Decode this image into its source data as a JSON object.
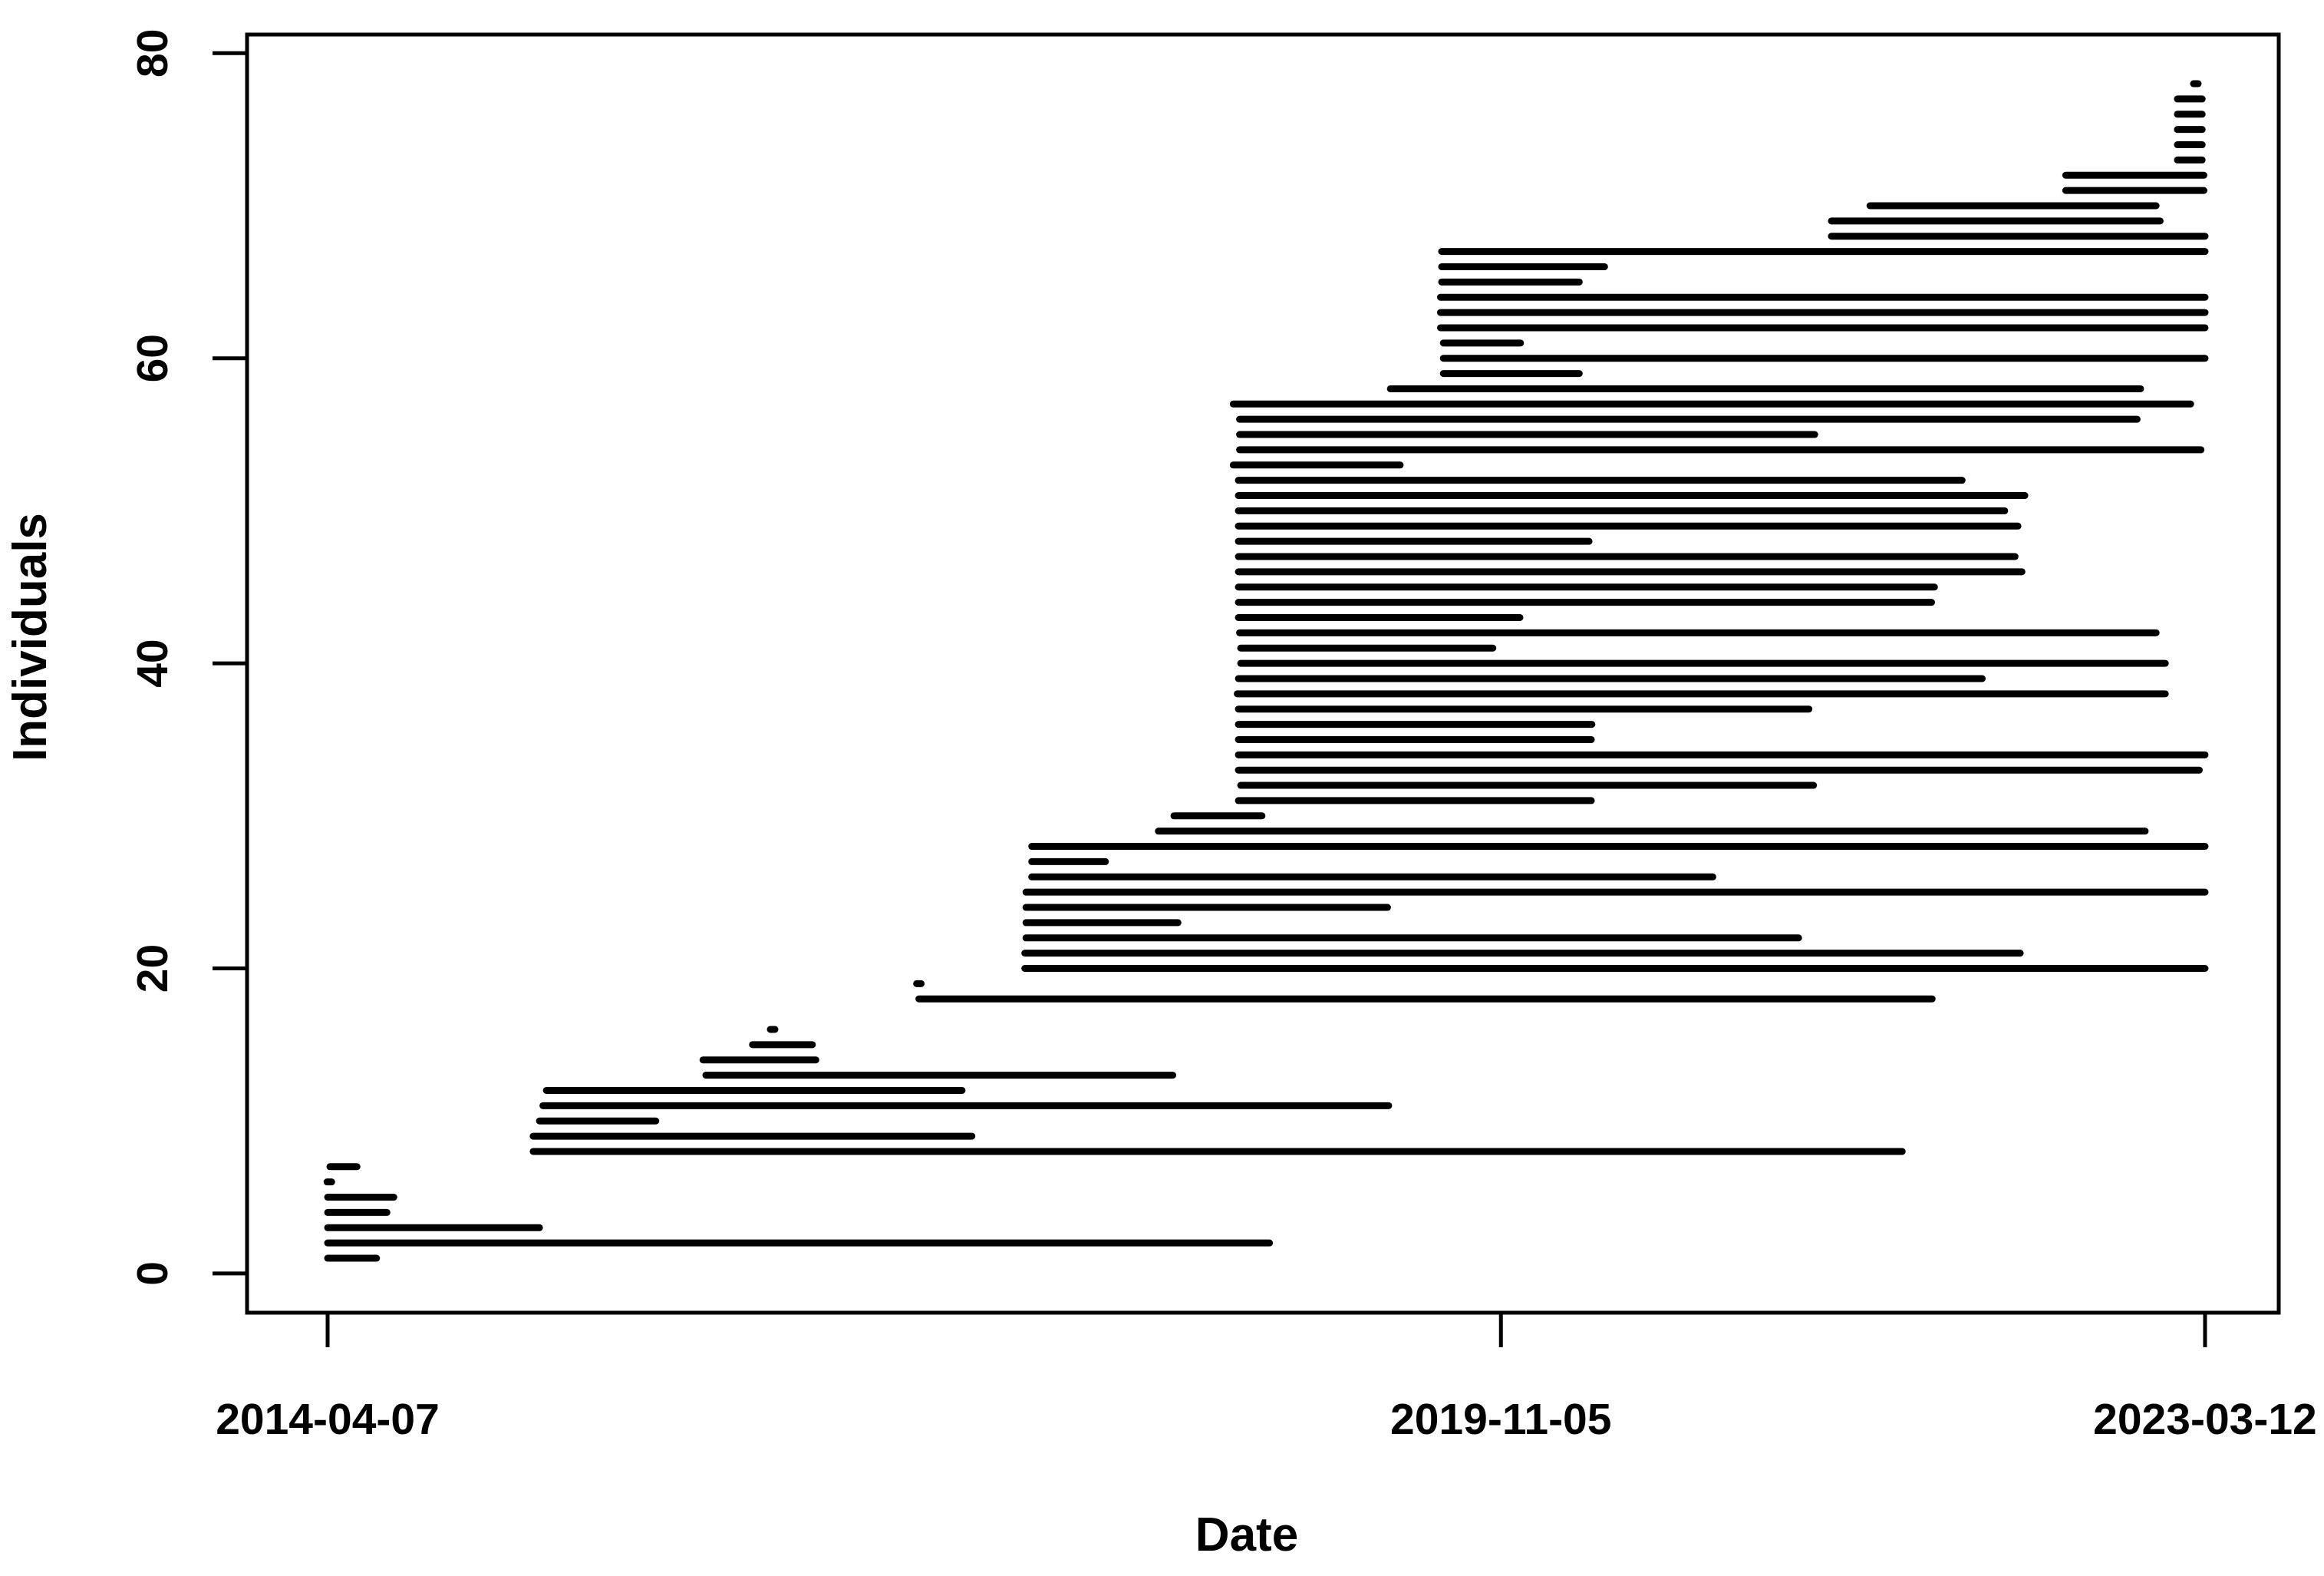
{
  "chart_data": {
    "type": "bar",
    "subtype": "horizontal-interval-segments (detection spans per individual)",
    "title": "",
    "xlabel": "Date",
    "ylabel": "Individuals",
    "epoch": "2014-04-07",
    "x_ticks": [
      {
        "date": "2014-04-07",
        "label": "2014-04-07"
      },
      {
        "date": "2019-11-05",
        "label": "2019-11-05"
      },
      {
        "date": "2023-03-12",
        "label": "2023-03-12"
      }
    ],
    "y_ticks": [
      0,
      20,
      40,
      60,
      80
    ],
    "ylim": [
      0,
      80
    ],
    "x_axis_range": [
      "2013-11-18",
      "2023-07-18"
    ],
    "grid": "off",
    "legend": "none",
    "ink_color": "#000000",
    "background_color": "#ffffff",
    "individuals": [
      {
        "id": 1,
        "first": "2014-04-07",
        "last": "2014-07-01"
      },
      {
        "id": 2,
        "first": "2014-04-07",
        "last": "2018-09-29"
      },
      {
        "id": 3,
        "first": "2014-04-07",
        "last": "2015-04-10"
      },
      {
        "id": 4,
        "first": "2014-04-07",
        "last": "2014-07-19"
      },
      {
        "id": 5,
        "first": "2014-04-07",
        "last": "2014-07-31"
      },
      {
        "id": 6,
        "first": "2014-04-10",
        "last": "2014-04-10"
      },
      {
        "id": 7,
        "first": "2014-04-11",
        "last": "2014-05-28"
      },
      {
        "id": 8,
        "first": "2015-03-30",
        "last": "2021-10-02"
      },
      {
        "id": 9,
        "first": "2015-03-30",
        "last": "2017-04-30"
      },
      {
        "id": 10,
        "first": "2015-04-10",
        "last": "2015-10-29"
      },
      {
        "id": 11,
        "first": "2015-04-16",
        "last": "2019-04-24"
      },
      {
        "id": 12,
        "first": "2015-04-22",
        "last": "2017-04-13"
      },
      {
        "id": 13,
        "first": "2016-01-24",
        "last": "2018-04-14"
      },
      {
        "id": 14,
        "first": "2016-01-19",
        "last": "2016-08-02"
      },
      {
        "id": 15,
        "first": "2016-04-14",
        "last": "2016-07-27"
      },
      {
        "id": 16,
        "first": "2016-05-19",
        "last": "2016-05-19"
      },
      {
        "id": 18,
        "first": "2017-01-28",
        "last": "2021-11-23"
      },
      {
        "id": 19,
        "first": "2017-01-28",
        "last": "2017-01-28"
      },
      {
        "id": 20,
        "first": "2017-07-31",
        "last": "2023-03-12"
      },
      {
        "id": 21,
        "first": "2017-07-31",
        "last": "2022-04-25"
      },
      {
        "id": 22,
        "first": "2017-08-02",
        "last": "2021-04-05"
      },
      {
        "id": 23,
        "first": "2017-08-02",
        "last": "2018-04-23"
      },
      {
        "id": 24,
        "first": "2017-08-02",
        "last": "2019-04-22"
      },
      {
        "id": 25,
        "first": "2017-08-02",
        "last": "2023-03-12"
      },
      {
        "id": 26,
        "first": "2017-08-12",
        "last": "2020-11-07"
      },
      {
        "id": 27,
        "first": "2017-08-12",
        "last": "2017-12-18"
      },
      {
        "id": 28,
        "first": "2017-08-12",
        "last": "2023-03-12"
      },
      {
        "id": 29,
        "first": "2018-03-20",
        "last": "2022-11-28"
      },
      {
        "id": 30,
        "first": "2018-04-16",
        "last": "2018-09-16"
      },
      {
        "id": 31,
        "first": "2018-08-06",
        "last": "2020-04-10"
      },
      {
        "id": 32,
        "first": "2018-08-10",
        "last": "2021-05-01"
      },
      {
        "id": 33,
        "first": "2018-08-06",
        "last": "2023-03-02"
      },
      {
        "id": 34,
        "first": "2018-08-06",
        "last": "2023-03-12"
      },
      {
        "id": 35,
        "first": "2018-08-06",
        "last": "2020-04-10"
      },
      {
        "id": 36,
        "first": "2018-08-06",
        "last": "2020-04-11"
      },
      {
        "id": 37,
        "first": "2018-08-06",
        "last": "2021-04-23"
      },
      {
        "id": 38,
        "first": "2018-08-04",
        "last": "2023-01-02"
      },
      {
        "id": 39,
        "first": "2018-08-06",
        "last": "2022-02-18"
      },
      {
        "id": 40,
        "first": "2018-08-10",
        "last": "2023-01-02"
      },
      {
        "id": 41,
        "first": "2018-08-10",
        "last": "2019-10-22"
      },
      {
        "id": 42,
        "first": "2018-08-08",
        "last": "2022-12-17"
      },
      {
        "id": 43,
        "first": "2018-08-06",
        "last": "2019-12-08"
      },
      {
        "id": 44,
        "first": "2018-08-06",
        "last": "2021-11-22"
      },
      {
        "id": 45,
        "first": "2018-08-06",
        "last": "2021-11-27"
      },
      {
        "id": 46,
        "first": "2018-08-06",
        "last": "2022-04-28"
      },
      {
        "id": 47,
        "first": "2018-08-06",
        "last": "2022-04-16"
      },
      {
        "id": 48,
        "first": "2018-08-06",
        "last": "2020-04-06"
      },
      {
        "id": 49,
        "first": "2018-08-06",
        "last": "2022-04-21"
      },
      {
        "id": 50,
        "first": "2018-08-06",
        "last": "2022-03-29"
      },
      {
        "id": 51,
        "first": "2018-08-06",
        "last": "2022-05-03"
      },
      {
        "id": 52,
        "first": "2018-08-06",
        "last": "2022-01-14"
      },
      {
        "id": 53,
        "first": "2018-07-28",
        "last": "2019-05-14"
      },
      {
        "id": 54,
        "first": "2018-08-08",
        "last": "2023-03-05"
      },
      {
        "id": 55,
        "first": "2018-08-08",
        "last": "2021-05-03"
      },
      {
        "id": 56,
        "first": "2018-08-08",
        "last": "2022-11-14"
      },
      {
        "id": 57,
        "first": "2018-07-28",
        "last": "2023-02-15"
      },
      {
        "id": 58,
        "first": "2019-04-27",
        "last": "2022-11-20"
      },
      {
        "id": 59,
        "first": "2019-07-28",
        "last": "2020-03-20"
      },
      {
        "id": 60,
        "first": "2019-07-28",
        "last": "2023-03-12"
      },
      {
        "id": 61,
        "first": "2019-07-28",
        "last": "2019-12-09"
      },
      {
        "id": 62,
        "first": "2019-07-23",
        "last": "2023-03-12"
      },
      {
        "id": 63,
        "first": "2019-07-23",
        "last": "2023-03-12"
      },
      {
        "id": 64,
        "first": "2019-07-23",
        "last": "2023-03-12"
      },
      {
        "id": 65,
        "first": "2019-07-25",
        "last": "2020-03-20"
      },
      {
        "id": 66,
        "first": "2019-07-25",
        "last": "2020-05-03"
      },
      {
        "id": 67,
        "first": "2019-07-25",
        "last": "2023-03-12"
      },
      {
        "id": 68,
        "first": "2021-06-01",
        "last": "2023-03-12"
      },
      {
        "id": 69,
        "first": "2021-06-01",
        "last": "2022-12-24"
      },
      {
        "id": 70,
        "first": "2021-08-07",
        "last": "2022-12-17"
      },
      {
        "id": 71,
        "first": "2022-07-13",
        "last": "2023-03-10"
      },
      {
        "id": 72,
        "first": "2022-07-13",
        "last": "2023-03-10"
      },
      {
        "id": 73,
        "first": "2023-01-23",
        "last": "2023-03-07"
      },
      {
        "id": 74,
        "first": "2023-01-23",
        "last": "2023-03-07"
      },
      {
        "id": 75,
        "first": "2023-01-23",
        "last": "2023-03-07"
      },
      {
        "id": 76,
        "first": "2023-01-23",
        "last": "2023-03-07"
      },
      {
        "id": 77,
        "first": "2023-01-23",
        "last": "2023-03-07"
      },
      {
        "id": 78,
        "first": "2023-02-24",
        "last": "2023-02-24"
      }
    ]
  }
}
